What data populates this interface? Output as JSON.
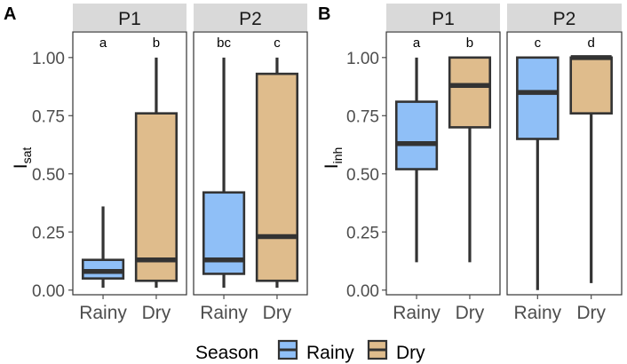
{
  "chart_data": [
    {
      "type": "boxplot",
      "panel_label": "A",
      "ylabel": "I",
      "ylabel_sub": "sat",
      "ylim": [
        -0.02,
        1.11
      ],
      "yticks": [
        "0.00",
        "0.25",
        "0.50",
        "0.75",
        "1.00"
      ],
      "ytick_values": [
        0,
        0.25,
        0.5,
        0.75,
        1.0
      ],
      "facets": [
        {
          "name": "P1",
          "boxes": [
            {
              "category": "Rainy",
              "min": 0.01,
              "q1": 0.05,
              "median": 0.08,
              "q3": 0.13,
              "max": 0.36,
              "letter": "a"
            },
            {
              "category": "Dry",
              "min": 0.01,
              "q1": 0.04,
              "median": 0.13,
              "q3": 0.76,
              "max": 1.0,
              "letter": "b"
            }
          ]
        },
        {
          "name": "P2",
          "boxes": [
            {
              "category": "Rainy",
              "min": 0.01,
              "q1": 0.07,
              "median": 0.13,
              "q3": 0.42,
              "max": 1.0,
              "letter": "bc"
            },
            {
              "category": "Dry",
              "min": 0.01,
              "q1": 0.04,
              "median": 0.23,
              "q3": 0.93,
              "max": 1.0,
              "letter": "c"
            }
          ]
        }
      ]
    },
    {
      "type": "boxplot",
      "panel_label": "B",
      "ylabel": "I",
      "ylabel_sub": "inh",
      "ylim": [
        -0.02,
        1.11
      ],
      "yticks": [
        "0.00",
        "0.25",
        "0.50",
        "0.75",
        "1.00"
      ],
      "ytick_values": [
        0,
        0.25,
        0.5,
        0.75,
        1.0
      ],
      "facets": [
        {
          "name": "P1",
          "boxes": [
            {
              "category": "Rainy",
              "min": 0.12,
              "q1": 0.52,
              "median": 0.63,
              "q3": 0.81,
              "max": 1.0,
              "letter": "a"
            },
            {
              "category": "Dry",
              "min": 0.12,
              "q1": 0.7,
              "median": 0.88,
              "q3": 1.0,
              "max": 1.0,
              "letter": "b"
            }
          ]
        },
        {
          "name": "P2",
          "boxes": [
            {
              "category": "Rainy",
              "min": 0.0,
              "q1": 0.65,
              "median": 0.85,
              "q3": 1.0,
              "max": 1.0,
              "letter": "c"
            },
            {
              "category": "Dry",
              "min": 0.03,
              "q1": 0.76,
              "median": 1.0,
              "q3": 1.0,
              "max": 1.0,
              "letter": "d"
            }
          ]
        }
      ]
    }
  ],
  "legend": {
    "title": "Season",
    "items": [
      {
        "label": "Rainy",
        "color": "#8fbff7"
      },
      {
        "label": "Dry",
        "color": "#dfbc8c"
      }
    ]
  },
  "colors": {
    "Rainy": "#8fbff7",
    "Dry": "#dfbc8c",
    "strip": "#d9d9d9",
    "line": "#333333",
    "axis_text": "#4d4d4d"
  }
}
